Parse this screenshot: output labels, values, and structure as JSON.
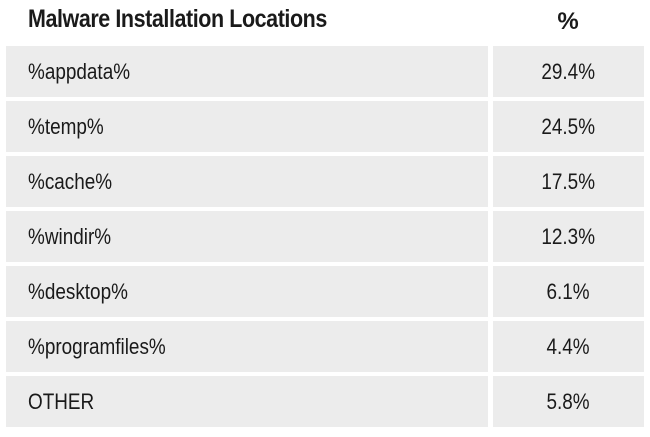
{
  "table": {
    "header_label": "Malware Installation Locations",
    "header_value": "%"
  },
  "chart_data": {
    "type": "table",
    "columns": [
      "Malware Installation Locations",
      "%"
    ],
    "rows": [
      {
        "location": "%appdata%",
        "percent": "29.4%"
      },
      {
        "location": "%temp%",
        "percent": "24.5%"
      },
      {
        "location": "%cache%",
        "percent": "17.5%"
      },
      {
        "location": "%windir%",
        "percent": "12.3%"
      },
      {
        "location": "%desktop%",
        "percent": "6.1%"
      },
      {
        "location": "%programfiles%",
        "percent": "4.4%"
      },
      {
        "location": "OTHER",
        "percent": "5.8%"
      }
    ]
  },
  "colors": {
    "row_background": "#ececec",
    "text": "#1a1a1a",
    "page_background": "#ffffff"
  }
}
